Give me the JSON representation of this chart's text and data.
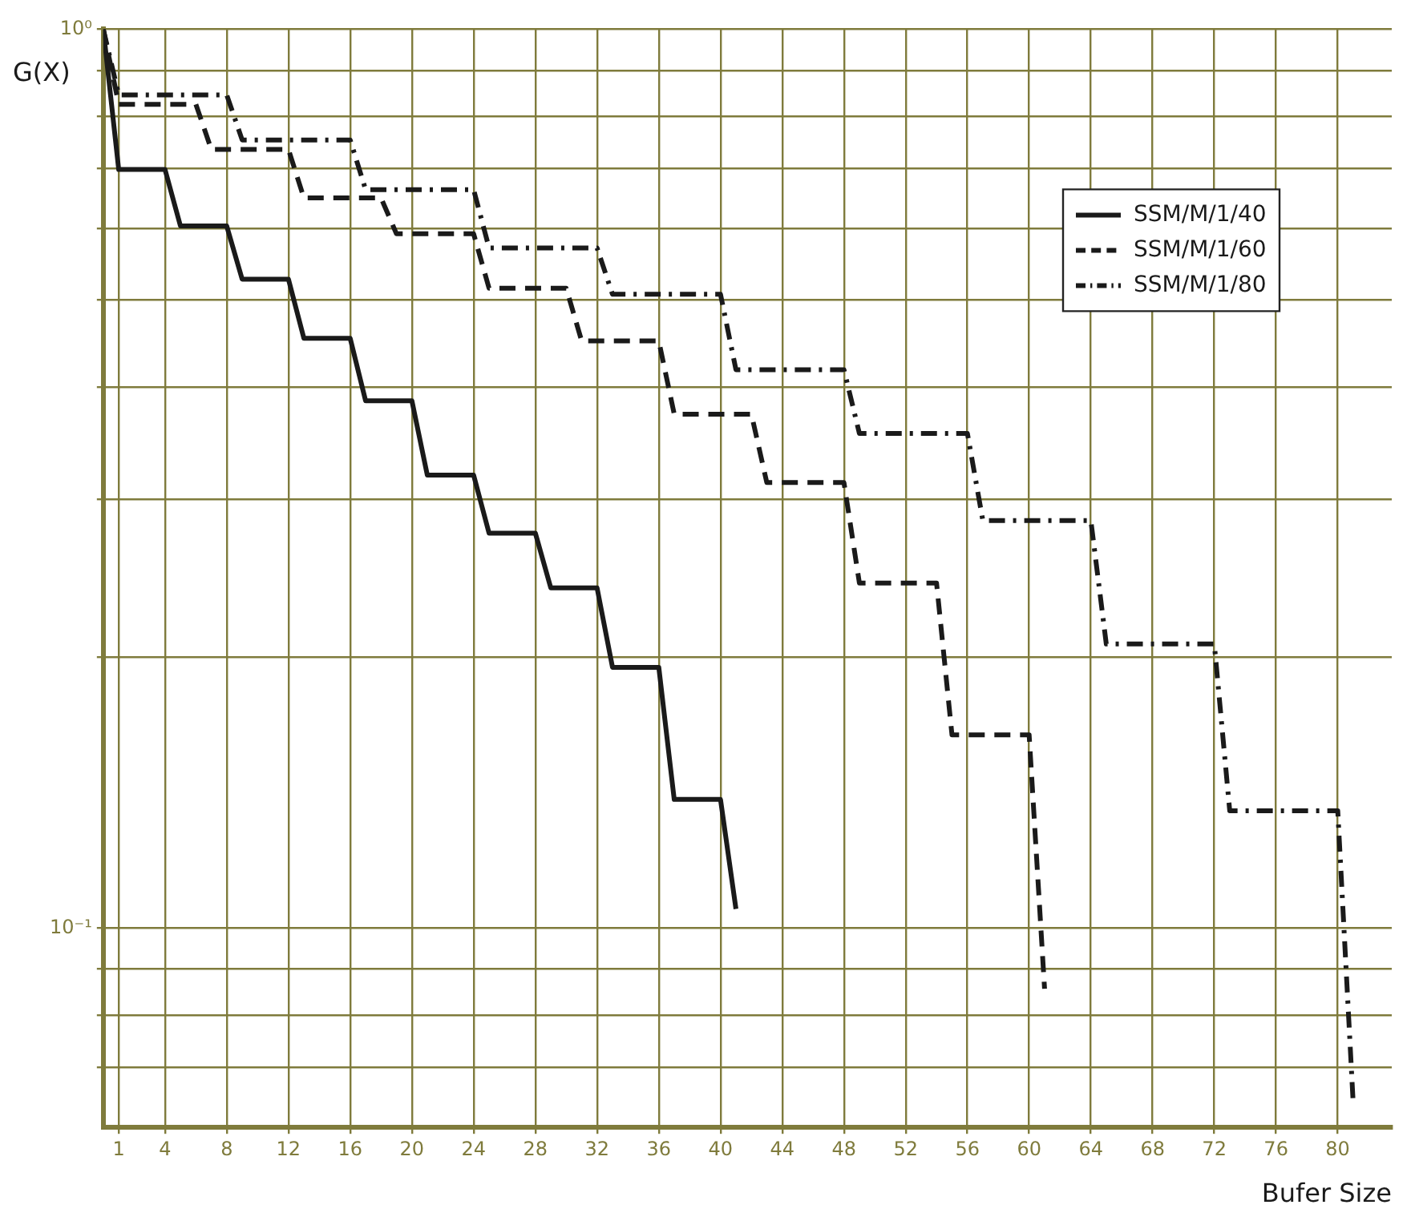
{
  "chart_data": {
    "type": "line",
    "xlabel": "Bufer Size",
    "ylabel": "G(X)",
    "log": "y",
    "grid": true,
    "legend": "top right",
    "xlim": [
      0,
      83.5
    ],
    "xticks": [
      1,
      4,
      8,
      12,
      16,
      20,
      24,
      28,
      32,
      36,
      40,
      44,
      48,
      52,
      56,
      60,
      64,
      68,
      72,
      76,
      80
    ],
    "ylim": [
      0.06,
      1
    ],
    "yticks": [
      {
        "value": 1,
        "label": "10⁰"
      },
      {
        "value": 0.9,
        "label": null
      },
      {
        "value": 0.8,
        "label": null
      },
      {
        "value": 0.7,
        "label": null
      },
      {
        "value": 0.6,
        "label": null
      },
      {
        "value": 0.5,
        "label": null
      },
      {
        "value": 0.4,
        "label": null
      },
      {
        "value": 0.3,
        "label": null
      },
      {
        "value": 0.2,
        "label": null
      },
      {
        "value": 0.1,
        "label": "10⁻¹"
      },
      {
        "value": 0.09,
        "label": null
      },
      {
        "value": 0.08,
        "label": null
      },
      {
        "value": 0.07,
        "label": null
      }
    ],
    "series": [
      {
        "name": "SSM/M/1/40",
        "color": "#1a1a1a",
        "line_style": "solid",
        "x": [
          0,
          1,
          4,
          5,
          8,
          9,
          12,
          13,
          16,
          17,
          20,
          21,
          24,
          25,
          28,
          29,
          32,
          33,
          36,
          37,
          40,
          41
        ],
        "values": [
          1,
          0.698,
          0.698,
          0.604,
          0.604,
          0.527,
          0.527,
          0.453,
          0.453,
          0.386,
          0.386,
          0.319,
          0.319,
          0.275,
          0.275,
          0.239,
          0.239,
          0.195,
          0.195,
          0.139,
          0.139,
          0.105
        ]
      },
      {
        "name": "SSM/M/1/60",
        "color": "#1a1a1a",
        "line_style": "dashed",
        "x": [
          0,
          1,
          6,
          7,
          12,
          13,
          18,
          19,
          24,
          25,
          30,
          31,
          36,
          37,
          42,
          43,
          48,
          49,
          54,
          55,
          60,
          61
        ],
        "values": [
          1,
          0.825,
          0.825,
          0.735,
          0.735,
          0.649,
          0.649,
          0.592,
          0.592,
          0.515,
          0.515,
          0.45,
          0.45,
          0.373,
          0.373,
          0.313,
          0.313,
          0.242,
          0.242,
          0.164,
          0.164,
          0.0856
        ]
      },
      {
        "name": "SSM/M/1/80",
        "color": "#1a1a1a",
        "line_style": "dashdot",
        "x": [
          0,
          1,
          8,
          9,
          16,
          17,
          24,
          25,
          32,
          33,
          40,
          41,
          48,
          49,
          56,
          57,
          64,
          65,
          72,
          73,
          80,
          81
        ],
        "values": [
          1,
          0.845,
          0.845,
          0.753,
          0.753,
          0.663,
          0.663,
          0.571,
          0.571,
          0.507,
          0.507,
          0.418,
          0.418,
          0.355,
          0.355,
          0.284,
          0.284,
          0.207,
          0.207,
          0.135,
          0.135,
          0.0639
        ]
      }
    ]
  }
}
